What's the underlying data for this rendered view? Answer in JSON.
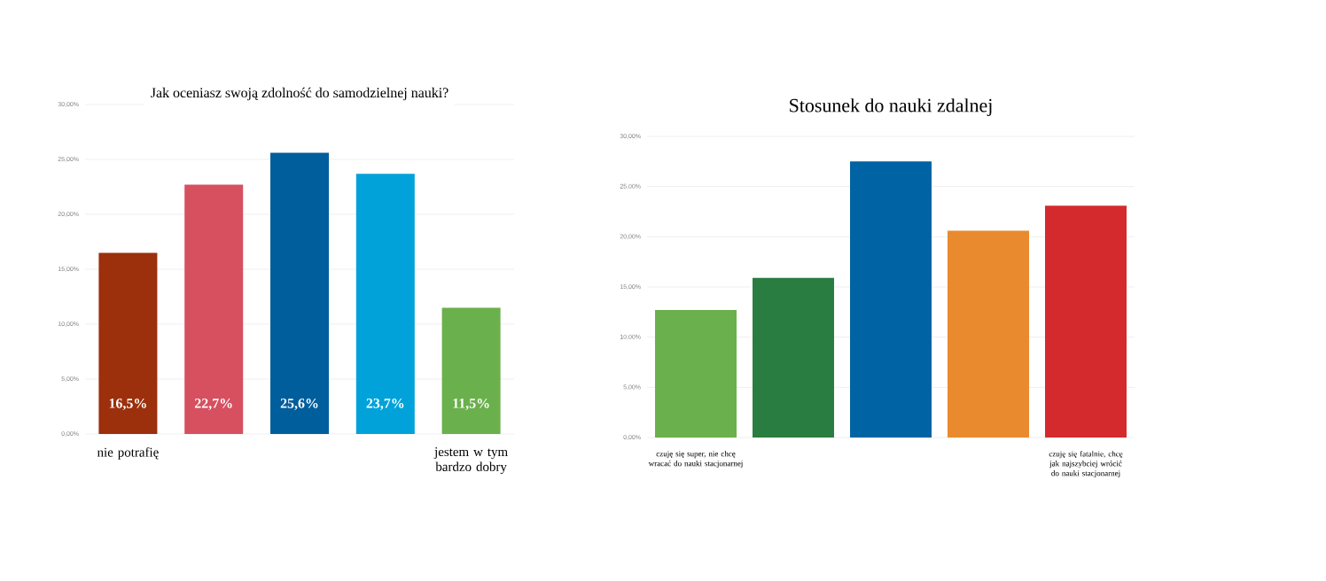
{
  "chart_data": [
    {
      "type": "bar",
      "title": "Jak oceniasz swoją zdolność do samodzielnej nauki?",
      "categories": [
        "nie potrafię",
        null,
        null,
        null,
        "jestem w tym bardzo dobry"
      ],
      "values": [
        16.5,
        22.7,
        25.6,
        23.7,
        11.5
      ],
      "colors": [
        "#9c2f0c",
        "#d65060",
        "#005e9c",
        "#00a2d9",
        "#6ab04c"
      ],
      "value_labels": [
        "16,5%",
        "22,7%",
        "25,6%",
        "23,7%",
        "11,5%"
      ],
      "ylim": [
        0,
        30
      ],
      "yticks": [
        {
          "value": 0,
          "label": "0,00%"
        },
        {
          "value": 5,
          "label": "5,00%"
        },
        {
          "value": 10,
          "label": "10,00%"
        },
        {
          "value": 15,
          "label": "15,00%"
        },
        {
          "value": 20,
          "label": "20,00%"
        },
        {
          "value": 25,
          "label": "25,00%"
        },
        {
          "value": 30,
          "label": "30,00%"
        }
      ],
      "grid": "y"
    },
    {
      "type": "bar",
      "title": "Stosunek do nauki zdalnej",
      "categories": [
        "czuję się super, nie chcę wracać do nauki stacjonarnej",
        null,
        null,
        null,
        "czuję się fatalnie, chcę jak najszybciej wrócić do nauki stacjonarnej"
      ],
      "values": [
        12.7,
        15.9,
        27.5,
        20.6,
        23.1
      ],
      "colors": [
        "#6ab04c",
        "#2a7d41",
        "#0064a4",
        "#ea8a2e",
        "#d42a2e"
      ],
      "ylim": [
        0,
        30
      ],
      "yticks": [
        {
          "value": 0,
          "label": "0,00%"
        },
        {
          "value": 5,
          "label": "5,00%"
        },
        {
          "value": 10,
          "label": "10,00%"
        },
        {
          "value": 15,
          "label": "15,00%"
        },
        {
          "value": 20,
          "label": "20,00%"
        },
        {
          "value": 25,
          "label": "25,00%"
        },
        {
          "value": 30,
          "label": "30,00%"
        }
      ],
      "grid": "y"
    }
  ]
}
